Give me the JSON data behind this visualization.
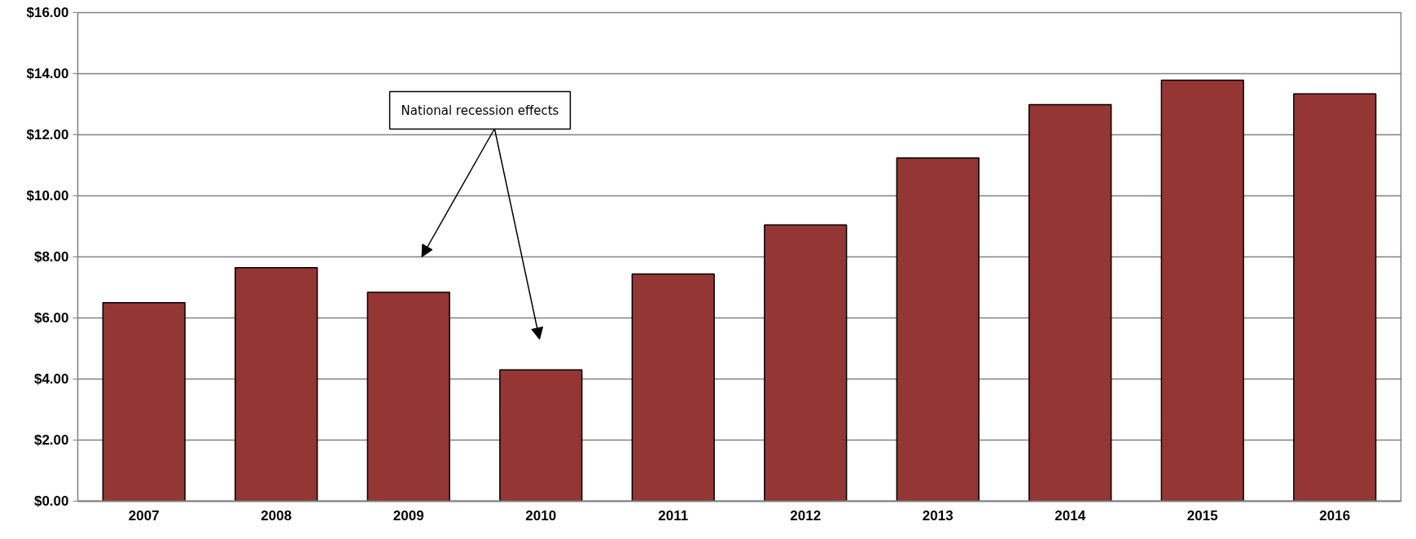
{
  "chart_data": {
    "type": "bar",
    "categories": [
      "2007",
      "2008",
      "2009",
      "2010",
      "2011",
      "2012",
      "2013",
      "2014",
      "2015",
      "2016"
    ],
    "values": [
      6.5,
      7.65,
      6.84,
      4.3,
      7.44,
      9.05,
      11.24,
      12.99,
      13.79,
      13.34
    ],
    "color": "#943634",
    "ylim": [
      0,
      16
    ],
    "yticks": [
      {
        "value": 0,
        "label": "$0.00"
      },
      {
        "value": 2,
        "label": "$2.00"
      },
      {
        "value": 4,
        "label": "$4.00"
      },
      {
        "value": 6,
        "label": "$6.00"
      },
      {
        "value": 8,
        "label": "$8.00"
      },
      {
        "value": 10,
        "label": "$10.00"
      },
      {
        "value": 12,
        "label": "$12.00"
      },
      {
        "value": 14,
        "label": "$14.00"
      },
      {
        "value": 16,
        "label": "$16.00"
      }
    ],
    "grid": "y",
    "annotations": [
      "National recession effects"
    ]
  }
}
